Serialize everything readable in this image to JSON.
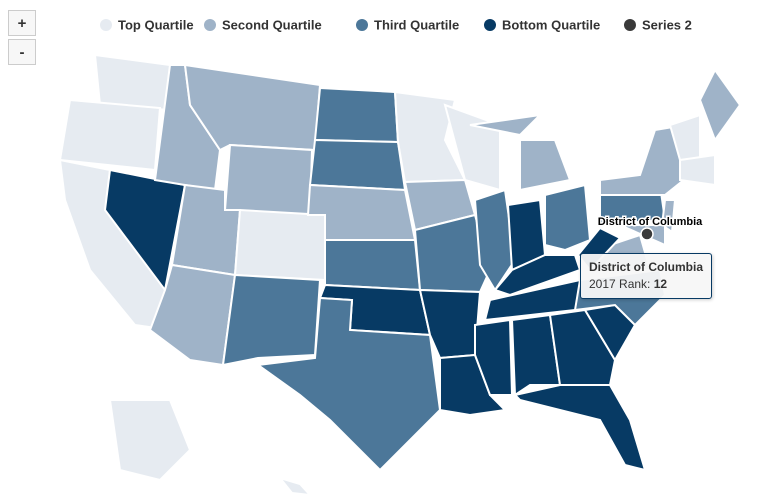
{
  "zoom": {
    "in": "+",
    "out": "-"
  },
  "chart_data": {
    "type": "map",
    "series": [
      {
        "name": "Top Quartile",
        "color": "#e6ebf1"
      },
      {
        "name": "Second Quartile",
        "color": "#9fb3c8"
      },
      {
        "name": "Third Quartile",
        "color": "#4c7799"
      },
      {
        "name": "Bottom Quartile",
        "color": "#073a64"
      },
      {
        "name": "Series 2",
        "color": "#3a3a3a"
      }
    ],
    "point_label": "District of Columbia",
    "tooltip": {
      "title": "District of Columbia",
      "label": "2017 Rank:",
      "value": 12
    }
  }
}
